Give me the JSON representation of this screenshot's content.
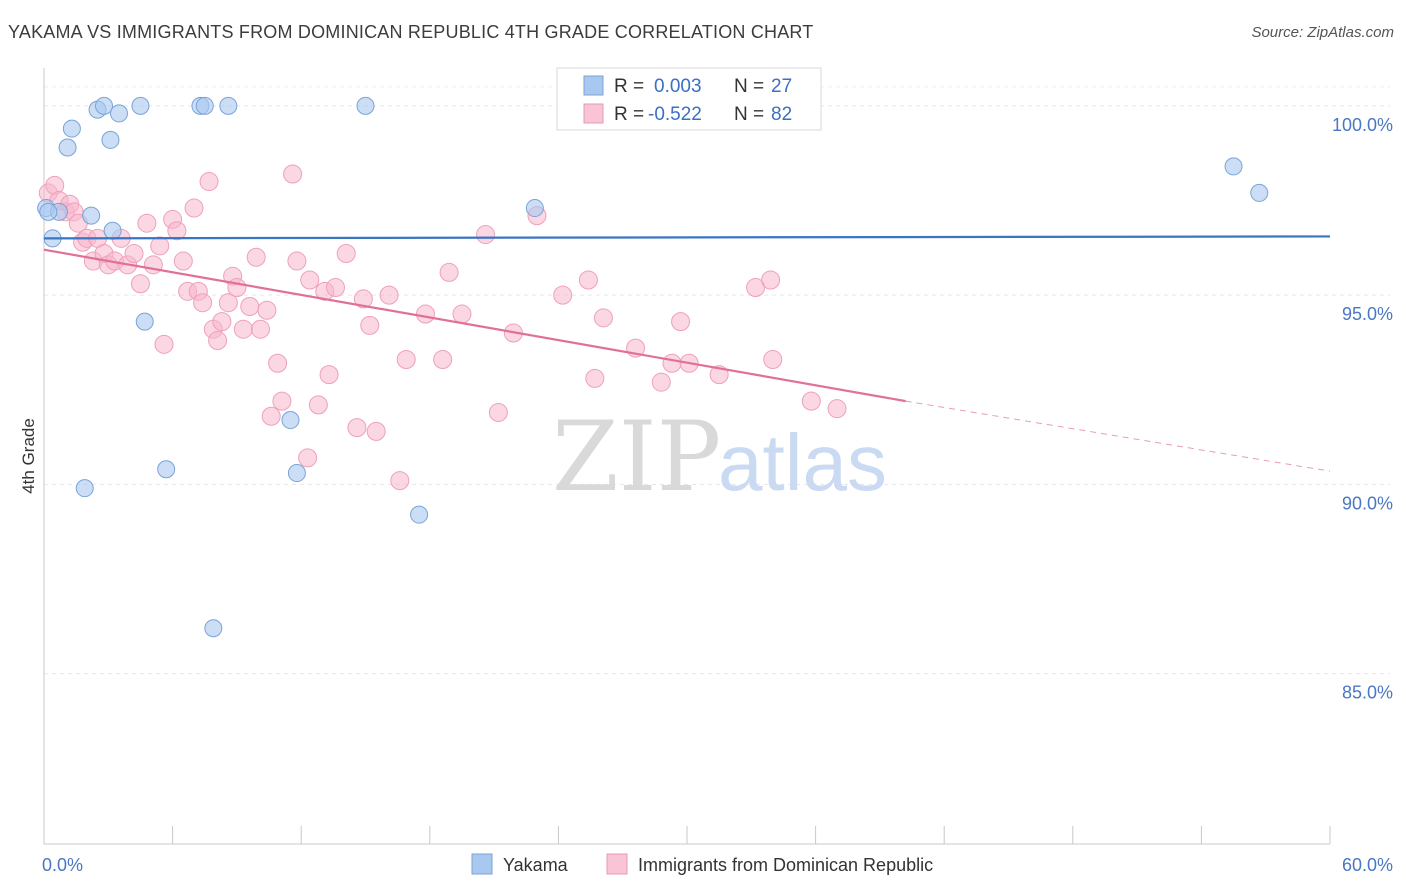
{
  "header": {
    "title": "YAKAMA VS IMMIGRANTS FROM DOMINICAN REPUBLIC 4TH GRADE CORRELATION CHART",
    "source": "Source: ZipAtlas.com"
  },
  "watermark": {
    "zip": "ZIP",
    "atlas": "atlas"
  },
  "chart_data": {
    "type": "scatter",
    "title": "YAKAMA VS IMMIGRANTS FROM DOMINICAN REPUBLIC 4TH GRADE CORRELATION CHART",
    "xlabel": "",
    "ylabel": "4th Grade",
    "xlim": [
      0,
      60
    ],
    "ylim": [
      80.5,
      101.0
    ],
    "x_tick_labels": [
      "0.0%",
      "60.0%"
    ],
    "y_ticks": [
      85,
      90,
      95,
      100
    ],
    "y_tick_labels": [
      "85.0%",
      "90.0%",
      "95.0%",
      "100.0%"
    ],
    "grid": true,
    "legend_position": "top-center",
    "colors": {
      "yakama": "#a9c8f0",
      "yakama_line": "#3a75c4",
      "dominican": "#f7b6cc",
      "dominican_line": "#e0709a"
    },
    "stats": [
      {
        "r_label": "R =",
        "r": "0.003",
        "n_label": "N =",
        "n": "27"
      },
      {
        "r_label": "R =",
        "r": "-0.522",
        "n_label": "N =",
        "n": "82"
      }
    ],
    "series": [
      {
        "name": "Yakama",
        "trend": {
          "x": [
            0,
            60
          ],
          "y": [
            96.5,
            96.55
          ]
        },
        "points": [
          [
            0.1,
            97.3
          ],
          [
            0.4,
            96.5
          ],
          [
            0.7,
            97.2
          ],
          [
            1.1,
            98.9
          ],
          [
            1.3,
            99.4
          ],
          [
            1.9,
            89.9
          ],
          [
            2.2,
            97.1
          ],
          [
            2.5,
            99.9
          ],
          [
            2.8,
            100.0
          ],
          [
            3.1,
            99.1
          ],
          [
            3.2,
            96.7
          ],
          [
            3.5,
            99.8
          ],
          [
            4.5,
            100.0
          ],
          [
            4.7,
            94.3
          ],
          [
            5.7,
            90.4
          ],
          [
            7.3,
            100.0
          ],
          [
            7.5,
            100.0
          ],
          [
            7.9,
            86.2
          ],
          [
            8.6,
            100.0
          ],
          [
            11.5,
            91.7
          ],
          [
            11.8,
            90.3
          ],
          [
            15.0,
            100.0
          ],
          [
            17.5,
            89.2
          ],
          [
            22.9,
            97.3
          ],
          [
            55.5,
            98.4
          ],
          [
            56.7,
            97.7
          ],
          [
            0.2,
            97.2
          ]
        ]
      },
      {
        "name": "Immigrants from Dominican Republic",
        "trend": {
          "x": [
            0,
            40.2
          ],
          "y": [
            96.2,
            92.2
          ]
        },
        "trend_dashed": {
          "x": [
            40.2,
            60
          ],
          "y": [
            92.2,
            90.35
          ]
        },
        "points": [
          [
            0.2,
            97.7
          ],
          [
            0.5,
            97.9
          ],
          [
            0.7,
            97.5
          ],
          [
            1.0,
            97.2
          ],
          [
            1.2,
            97.4
          ],
          [
            1.4,
            97.2
          ],
          [
            1.6,
            96.9
          ],
          [
            1.8,
            96.4
          ],
          [
            2.0,
            96.5
          ],
          [
            2.3,
            95.9
          ],
          [
            2.5,
            96.5
          ],
          [
            2.8,
            96.1
          ],
          [
            3.0,
            95.8
          ],
          [
            3.3,
            95.9
          ],
          [
            3.6,
            96.5
          ],
          [
            3.9,
            95.8
          ],
          [
            4.2,
            96.1
          ],
          [
            4.5,
            95.3
          ],
          [
            4.8,
            96.9
          ],
          [
            5.1,
            95.8
          ],
          [
            5.4,
            96.3
          ],
          [
            5.6,
            93.7
          ],
          [
            6.0,
            97.0
          ],
          [
            6.2,
            96.7
          ],
          [
            6.5,
            95.9
          ],
          [
            6.7,
            95.1
          ],
          [
            7.0,
            97.3
          ],
          [
            7.2,
            95.1
          ],
          [
            7.4,
            94.8
          ],
          [
            7.7,
            98.0
          ],
          [
            7.9,
            94.1
          ],
          [
            8.1,
            93.8
          ],
          [
            8.3,
            94.3
          ],
          [
            8.6,
            94.8
          ],
          [
            8.8,
            95.5
          ],
          [
            9.0,
            95.2
          ],
          [
            9.3,
            94.1
          ],
          [
            9.6,
            94.7
          ],
          [
            9.9,
            96.0
          ],
          [
            10.1,
            94.1
          ],
          [
            10.4,
            94.6
          ],
          [
            10.6,
            91.8
          ],
          [
            10.9,
            93.2
          ],
          [
            11.1,
            92.2
          ],
          [
            11.6,
            98.2
          ],
          [
            11.8,
            95.9
          ],
          [
            12.3,
            90.7
          ],
          [
            12.4,
            95.4
          ],
          [
            12.8,
            92.1
          ],
          [
            13.1,
            95.1
          ],
          [
            13.3,
            92.9
          ],
          [
            13.6,
            95.2
          ],
          [
            14.1,
            96.1
          ],
          [
            14.6,
            91.5
          ],
          [
            14.9,
            94.9
          ],
          [
            15.2,
            94.2
          ],
          [
            15.5,
            91.4
          ],
          [
            16.1,
            95.0
          ],
          [
            16.6,
            90.1
          ],
          [
            16.9,
            93.3
          ],
          [
            17.8,
            94.5
          ],
          [
            18.6,
            93.3
          ],
          [
            18.9,
            95.6
          ],
          [
            19.5,
            94.5
          ],
          [
            20.6,
            96.6
          ],
          [
            21.2,
            91.9
          ],
          [
            21.9,
            94.0
          ],
          [
            23.0,
            97.1
          ],
          [
            24.2,
            95.0
          ],
          [
            25.4,
            95.4
          ],
          [
            25.7,
            92.8
          ],
          [
            26.1,
            94.4
          ],
          [
            27.6,
            93.6
          ],
          [
            28.8,
            92.7
          ],
          [
            29.3,
            93.2
          ],
          [
            29.7,
            94.3
          ],
          [
            30.1,
            93.2
          ],
          [
            31.5,
            92.9
          ],
          [
            33.2,
            95.2
          ],
          [
            33.9,
            95.4
          ],
          [
            34.0,
            93.3
          ],
          [
            35.8,
            92.2
          ],
          [
            37.0,
            92.0
          ]
        ]
      }
    ]
  }
}
